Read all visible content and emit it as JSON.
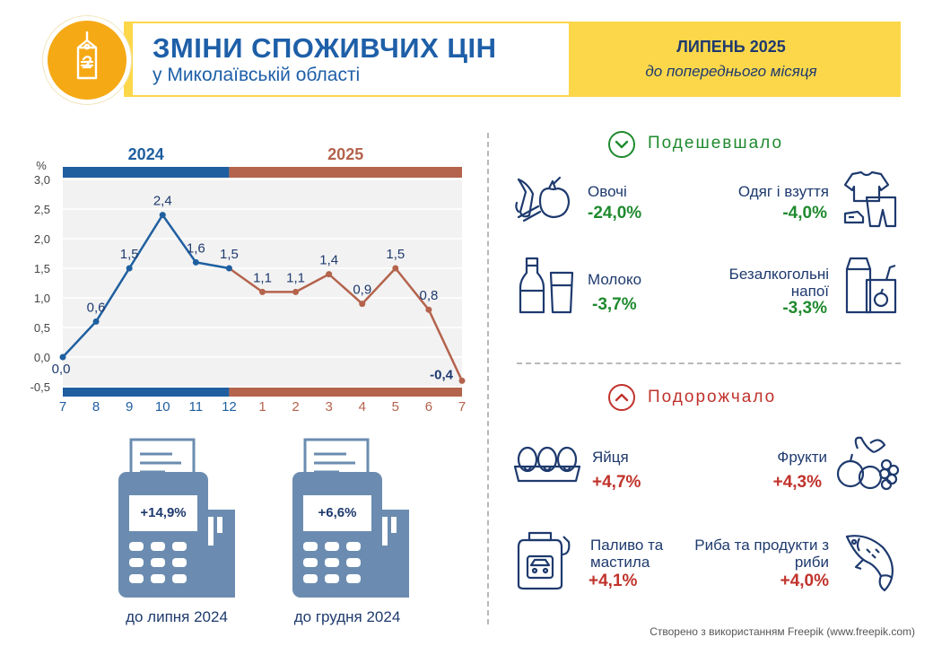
{
  "header": {
    "title": "ЗМІНИ СПОЖИВЧИХ ЦІН",
    "subtitle": "у Миколаївській області",
    "period": "ЛИПЕНЬ 2025",
    "period_sub": "до попереднього місяця",
    "logo_icon": "price-tag-hryvnia-icon"
  },
  "chart_data": {
    "type": "line",
    "ylabel": "%",
    "ylim": [
      -0.5,
      3.0
    ],
    "yticks": [
      "3,0",
      "2,5",
      "2,0",
      "1,5",
      "1,0",
      "0,5",
      "0,0",
      "-0,5"
    ],
    "year_bands": [
      {
        "label": "2024",
        "color": "#1f5fa0",
        "months": 6
      },
      {
        "label": "2025",
        "color": "#b4634c",
        "months": 7
      }
    ],
    "categories": [
      "7",
      "8",
      "9",
      "10",
      "11",
      "12",
      "1",
      "2",
      "3",
      "4",
      "5",
      "6",
      "7"
    ],
    "values": [
      0.0,
      0.6,
      1.5,
      2.4,
      1.6,
      1.5,
      1.1,
      1.1,
      1.4,
      0.9,
      1.5,
      0.8,
      -0.4
    ],
    "value_labels": [
      "0,0",
      "0,6",
      "1,5",
      "2,4",
      "1,6",
      "1,5",
      "1,1",
      "1,1",
      "1,4",
      "0,9",
      "1,5",
      "0,8",
      "-0,4"
    ],
    "grid": true
  },
  "terminals": [
    {
      "value": "+14,9%",
      "caption": "до липня 2024"
    },
    {
      "value": "+6,6%",
      "caption": "до грудня 2024"
    }
  ],
  "cheaper": {
    "title": "Подешевшало",
    "icon": "chevron-down-icon",
    "color": "#1f8a2e",
    "items": [
      {
        "label": "Овочі",
        "value": "-24,0%",
        "icon": "vegetables-icon"
      },
      {
        "label": "Одяг і взуття",
        "value": "-4,0%",
        "icon": "clothing-icon"
      },
      {
        "label": "Молоко",
        "value": "-3,7%",
        "icon": "milk-icon"
      },
      {
        "label": "Безалкогольні напої",
        "value": "-3,3%",
        "icon": "soft-drinks-icon"
      }
    ]
  },
  "pricier": {
    "title": "Подорожчало",
    "icon": "chevron-up-icon",
    "color": "#c0322b",
    "items": [
      {
        "label": "Яйця",
        "value": "+4,7%",
        "icon": "eggs-icon"
      },
      {
        "label": "Фрукти",
        "value": "+4,3%",
        "icon": "fruits-icon"
      },
      {
        "label": "Паливо та мастила",
        "value": "+4,1%",
        "icon": "fuel-icon"
      },
      {
        "label": "Риба та продукти з риби",
        "value": "+4,0%",
        "icon": "fish-icon"
      }
    ]
  },
  "credit": "Створено з використанням Freepik (www.freepik.com)"
}
